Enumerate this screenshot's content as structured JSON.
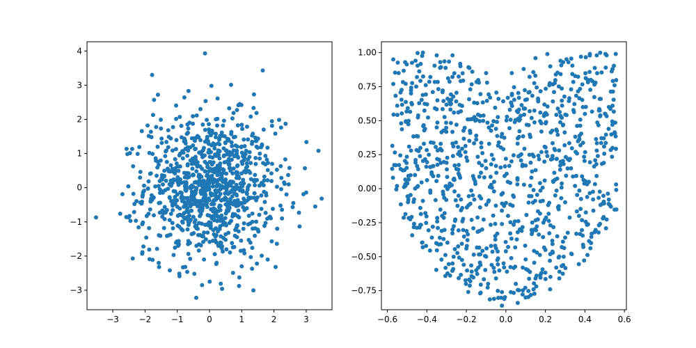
{
  "chart_data": [
    {
      "type": "scatter",
      "title": "",
      "xlabel": "",
      "ylabel": "",
      "xlim": [
        -3.8,
        3.8
      ],
      "ylim": [
        -3.57,
        4.27
      ],
      "xticks": [
        "−3",
        "−2",
        "−1",
        "0",
        "1",
        "2",
        "3"
      ],
      "yticks": [
        "−3",
        "−2",
        "−1",
        "0",
        "1",
        "2",
        "3",
        "4"
      ],
      "grid": false,
      "marker_color": "#1f77b4",
      "distribution": "bivariate standard normal, ~1000 points",
      "series": [
        {
          "values": [
            [
              -0.14,
              3.93
            ],
            [
              -1.78,
              3.3
            ],
            [
              -0.65,
              2.83
            ],
            [
              0.67,
              3.01
            ],
            [
              0.06,
              2.98
            ],
            [
              1.38,
              2.73
            ],
            [
              -1.6,
              2.72
            ],
            [
              -1.72,
              2.57
            ],
            [
              -0.78,
              2.64
            ],
            [
              -1.75,
              2.13
            ],
            [
              0.99,
              2.42
            ],
            [
              -0.92,
              2.07
            ],
            [
              0.25,
              2.61
            ],
            [
              -0.28,
              2.3
            ],
            [
              -1.92,
              1.82
            ],
            [
              2.36,
              1.87
            ],
            [
              1.28,
              2.08
            ],
            [
              1.94,
              1.81
            ],
            [
              2.22,
              1.76
            ],
            [
              -2.23,
              0.99
            ],
            [
              3.38,
              1.08
            ],
            [
              2.96,
              0.57
            ],
            [
              -1.51,
              1.99
            ],
            [
              1.68,
              1.7
            ],
            [
              -1.8,
              1.48
            ],
            [
              2.48,
              0.58
            ],
            [
              2.44,
              0.37
            ],
            [
              -2.7,
              -0.19
            ],
            [
              -3.52,
              -0.87
            ],
            [
              -2.36,
              -0.18
            ],
            [
              -2.77,
              -0.76
            ],
            [
              -2.58,
              -0.86
            ],
            [
              -2.2,
              -1.16
            ],
            [
              -2.38,
              -2.07
            ],
            [
              -2.05,
              -1.72
            ],
            [
              -1.87,
              -1.81
            ],
            [
              -1.96,
              -1.46
            ],
            [
              -1.57,
              -1.39
            ],
            [
              -1.86,
              -2.09
            ],
            [
              -1.23,
              -2.42
            ],
            [
              -0.93,
              -2.59
            ],
            [
              -0.47,
              -2.52
            ],
            [
              -0.6,
              -2.08
            ],
            [
              -0.17,
              -2.1
            ],
            [
              -0.23,
              -2.85
            ],
            [
              -0.41,
              -3.22
            ],
            [
              0.35,
              -2.81
            ],
            [
              0.39,
              -2.96
            ],
            [
              0.21,
              -2.23
            ],
            [
              0.73,
              -2.49
            ],
            [
              1.0,
              -2.3
            ],
            [
              1.32,
              -2.37
            ],
            [
              1.47,
              -2.22
            ],
            [
              2.05,
              -2.32
            ],
            [
              1.62,
              -1.99
            ],
            [
              1.93,
              -1.57
            ],
            [
              2.09,
              -1.64
            ],
            [
              2.1,
              -1.2
            ],
            [
              2.25,
              -0.9
            ],
            [
              2.6,
              -0.45
            ],
            [
              2.58,
              -0.57
            ],
            [
              3.28,
              -0.55
            ],
            [
              3.48,
              -0.32
            ],
            [
              2.33,
              0.11
            ],
            [
              1.78,
              0.82
            ],
            [
              1.92,
              0.42
            ],
            [
              1.46,
              1.2
            ],
            [
              1.0,
              1.84
            ],
            [
              0.45,
              1.96
            ],
            [
              -0.02,
              1.86
            ],
            [
              -0.62,
              1.9
            ],
            [
              -1.28,
              1.68
            ],
            [
              -1.48,
              1.31
            ],
            [
              -1.67,
              0.86
            ],
            [
              -1.82,
              0.42
            ],
            [
              -2.03,
              0.06
            ],
            [
              -1.54,
              -0.73
            ],
            [
              -1.41,
              -1.18
            ],
            [
              -0.97,
              -1.7
            ],
            [
              -0.33,
              -1.84
            ],
            [
              0.38,
              -1.77
            ],
            [
              0.98,
              -1.55
            ],
            [
              1.42,
              -1.19
            ],
            [
              1.61,
              -0.62
            ],
            [
              1.68,
              0.07
            ],
            [
              1.24,
              0.9
            ],
            [
              0.59,
              1.42
            ],
            [
              -0.28,
              1.39
            ],
            [
              -0.84,
              1.07
            ],
            [
              -1.11,
              0.46
            ],
            [
              -1.07,
              -0.27
            ],
            [
              -0.66,
              -0.97
            ],
            [
              0.04,
              -1.11
            ],
            [
              0.73,
              -0.77
            ],
            [
              1.03,
              -0.1
            ],
            [
              0.86,
              0.63
            ],
            [
              0.21,
              0.93
            ],
            [
              -0.38,
              0.62
            ],
            [
              -0.58,
              -0.02
            ],
            [
              -0.21,
              -0.51
            ],
            [
              0.41,
              -0.35
            ],
            [
              0.34,
              0.27
            ],
            [
              -0.05,
              0.05
            ],
            [
              0.15,
              0.45
            ],
            [
              -0.31,
              0.3
            ],
            [
              -0.12,
              -0.22
            ],
            [
              0.18,
              -0.08
            ],
            [
              0.55,
              0.12
            ],
            [
              -0.45,
              -0.4
            ],
            [
              0.08,
              0.68
            ],
            [
              -0.7,
              0.36
            ],
            [
              -0.92,
              -0.61
            ],
            [
              0.62,
              -0.58
            ],
            [
              0.92,
              0.28
            ],
            [
              -0.25,
              1.05
            ]
          ]
        }
      ]
    },
    {
      "type": "scatter",
      "title": "",
      "xlabel": "",
      "ylabel": "",
      "xlim": [
        -0.63,
        0.61
      ],
      "ylim": [
        -0.89,
        1.08
      ],
      "xticks": [
        "−0.6",
        "−0.4",
        "−0.2",
        "0.0",
        "0.2",
        "0.4",
        "0.6"
      ],
      "yticks": [
        "−0.75",
        "−0.50",
        "−0.25",
        "0.00",
        "0.25",
        "0.50",
        "0.75",
        "1.00"
      ],
      "grid": false,
      "marker_color": "#1f77b4",
      "distribution": "~1000 points filling a heart/V shaped region",
      "series": [
        {
          "values": [
            [
              -0.57,
              0.95
            ],
            [
              -0.51,
              0.93
            ],
            [
              -0.42,
              1.0
            ],
            [
              -0.35,
              0.98
            ],
            [
              -0.27,
              0.98
            ],
            [
              -0.23,
              0.9
            ],
            [
              -0.17,
              0.86
            ],
            [
              -0.1,
              0.85
            ],
            [
              0.03,
              0.85
            ],
            [
              0.09,
              0.88
            ],
            [
              0.15,
              0.96
            ],
            [
              0.21,
              0.99
            ],
            [
              0.29,
              0.93
            ],
            [
              0.38,
              0.97
            ],
            [
              0.46,
              0.98
            ],
            [
              0.51,
              0.98
            ],
            [
              0.54,
              0.88
            ],
            [
              0.55,
              0.76
            ],
            [
              0.54,
              0.61
            ],
            [
              0.52,
              0.44
            ],
            [
              0.46,
              0.28
            ],
            [
              0.42,
              0.05
            ],
            [
              0.37,
              -0.2
            ],
            [
              0.3,
              -0.36
            ],
            [
              0.27,
              -0.5
            ],
            [
              0.18,
              -0.62
            ],
            [
              0.14,
              -0.74
            ],
            [
              0.06,
              -0.84
            ],
            [
              -0.02,
              -0.86
            ],
            [
              -0.06,
              -0.81
            ],
            [
              -0.13,
              -0.77
            ],
            [
              -0.18,
              -0.68
            ],
            [
              -0.27,
              -0.55
            ],
            [
              -0.34,
              -0.41
            ],
            [
              -0.37,
              -0.28
            ],
            [
              -0.42,
              -0.09
            ],
            [
              -0.46,
              0.1
            ],
            [
              -0.48,
              0.28
            ],
            [
              -0.53,
              0.48
            ],
            [
              -0.55,
              0.61
            ],
            [
              -0.57,
              0.77
            ],
            [
              -0.45,
              0.82
            ],
            [
              -0.37,
              0.71
            ],
            [
              -0.28,
              0.62
            ],
            [
              -0.18,
              0.73
            ],
            [
              -0.08,
              0.67
            ],
            [
              0.02,
              0.58
            ],
            [
              0.12,
              0.71
            ],
            [
              0.22,
              0.76
            ],
            [
              0.33,
              0.73
            ],
            [
              0.43,
              0.8
            ],
            [
              0.4,
              0.55
            ],
            [
              0.29,
              0.47
            ],
            [
              0.18,
              0.42
            ],
            [
              0.06,
              0.37
            ],
            [
              -0.05,
              0.44
            ],
            [
              -0.15,
              0.39
            ],
            [
              -0.25,
              0.47
            ],
            [
              -0.35,
              0.45
            ],
            [
              -0.39,
              0.25
            ],
            [
              -0.3,
              0.19
            ],
            [
              -0.2,
              0.23
            ],
            [
              -0.1,
              0.15
            ],
            [
              0.0,
              0.22
            ],
            [
              0.1,
              0.17
            ],
            [
              0.21,
              0.24
            ],
            [
              0.32,
              0.21
            ],
            [
              0.35,
              0.02
            ],
            [
              0.25,
              -0.05
            ],
            [
              0.14,
              -0.01
            ],
            [
              0.04,
              -0.06
            ],
            [
              -0.06,
              -0.02
            ],
            [
              -0.16,
              -0.08
            ],
            [
              -0.26,
              -0.02
            ],
            [
              -0.31,
              -0.18
            ],
            [
              -0.22,
              -0.24
            ],
            [
              -0.12,
              -0.3
            ],
            [
              -0.02,
              -0.26
            ],
            [
              0.08,
              -0.31
            ],
            [
              0.19,
              -0.25
            ],
            [
              0.26,
              -0.35
            ],
            [
              0.2,
              -0.45
            ],
            [
              0.1,
              -0.52
            ],
            [
              0.0,
              -0.46
            ],
            [
              -0.1,
              -0.5
            ],
            [
              -0.2,
              -0.44
            ],
            [
              -0.15,
              -0.6
            ],
            [
              -0.05,
              -0.66
            ],
            [
              0.05,
              -0.7
            ],
            [
              0.15,
              -0.66
            ],
            [
              0.1,
              -0.8
            ],
            [
              -0.02,
              -0.76
            ],
            [
              -0.09,
              -0.7
            ],
            [
              0.48,
              0.66
            ],
            [
              -0.48,
              0.7
            ],
            [
              0.37,
              0.36
            ],
            [
              -0.33,
              0.33
            ],
            [
              0.3,
              -0.1
            ],
            [
              -0.27,
              -0.3
            ],
            [
              0.01,
              0.05
            ]
          ]
        }
      ]
    }
  ]
}
